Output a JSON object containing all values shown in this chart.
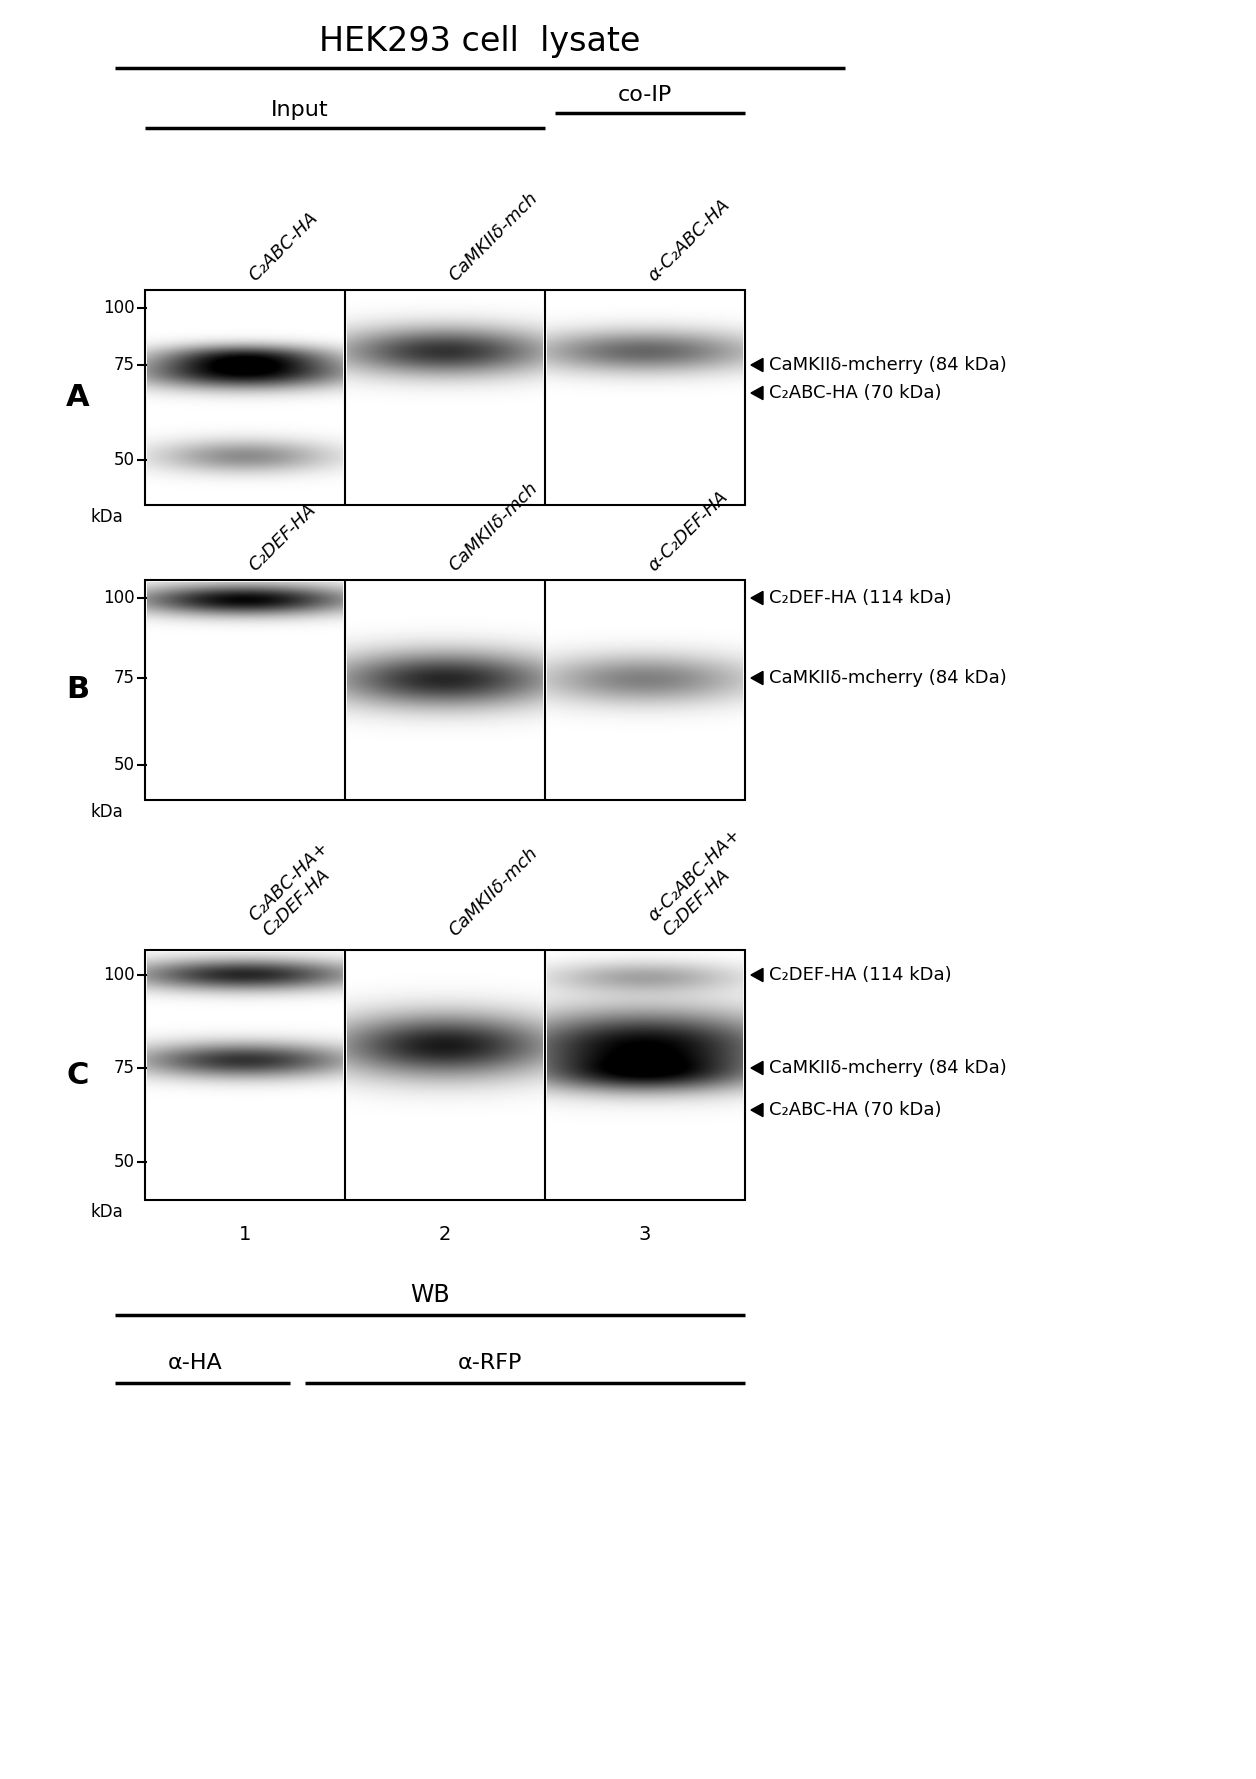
{
  "title": "HEK293 cell  lysate",
  "bg_color": "#ffffff",
  "panel_A": {
    "label": "A",
    "col_labels": [
      "C₂ABC-HA",
      "CaMKIIδ-mch",
      "α-C₂ABC-HA"
    ],
    "input_label": "Input",
    "coip_label": "co-IP",
    "band_annotations": [
      "CaMKIIδ-mcherry (84 kDa)",
      "C₂ABC-HA (70 kDa)"
    ],
    "mw_markers": [
      "100",
      "75",
      "50"
    ]
  },
  "panel_B": {
    "label": "B",
    "col_labels": [
      "C₂DEF-HA",
      "CaMKIIδ-mch",
      "α-C₂DEF-HA"
    ],
    "band_annotations": [
      "C₂DEF-HA (114 kDa)",
      "CaMKIIδ-mcherry (84 kDa)"
    ],
    "mw_markers": [
      "100",
      "75",
      "50"
    ]
  },
  "panel_C": {
    "label": "C",
    "col_labels": [
      "C₂ABC-HA+\nC₂DEF-HA",
      "CaMKIIδ-mch",
      "α-C₂ABC-HA+\nC₂DEF-HA"
    ],
    "lane_numbers": [
      "1",
      "2",
      "3"
    ],
    "band_annotations": [
      "C₂DEF-HA (114 kDa)",
      "CaMKIIδ-mcherry (84 kDa)",
      "C₂ABC-HA (70 kDa)"
    ],
    "mw_markers": [
      "100",
      "75",
      "50"
    ]
  },
  "wb_label": "WB",
  "ab_left": "α-HA",
  "ab_right": "α-RFP"
}
